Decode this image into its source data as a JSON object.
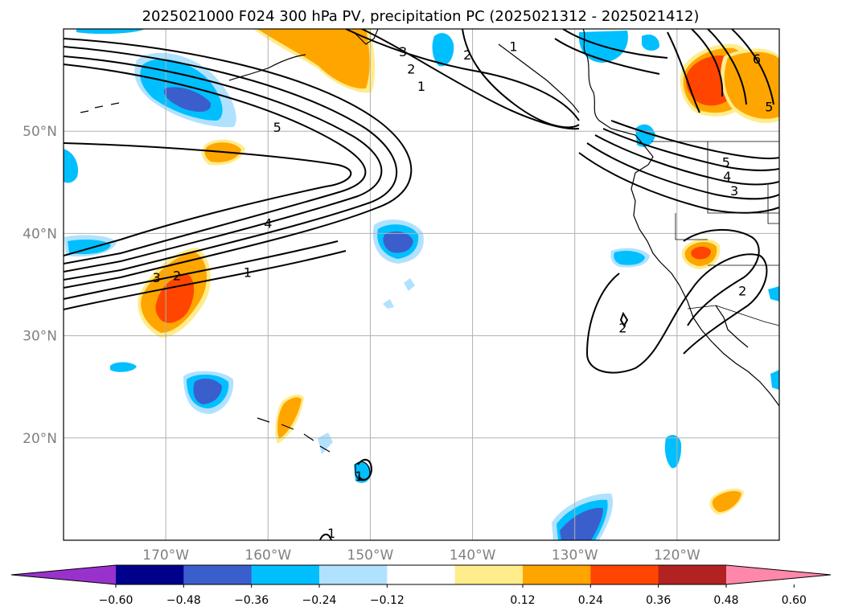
{
  "figure": {
    "title": "2025021000 F024 300 hPa PV, precipitation PC (2025021312 - 2025021412)"
  },
  "map": {
    "extent": {
      "lon_min": -180,
      "lon_max": -110,
      "lat_min": 10,
      "lat_max": 60
    },
    "gridlines": true,
    "lat_labels": [
      {
        "lat": 50,
        "text": "50°N"
      },
      {
        "lat": 40,
        "text": "40°N"
      },
      {
        "lat": 30,
        "text": "30°N"
      },
      {
        "lat": 20,
        "text": "20°N"
      }
    ],
    "lon_labels": [
      {
        "lon": -170,
        "text": "170°W"
      },
      {
        "lon": -160,
        "text": "160°W"
      },
      {
        "lon": -150,
        "text": "150°W"
      },
      {
        "lon": -140,
        "text": "140°W"
      },
      {
        "lon": -130,
        "text": "130°W"
      },
      {
        "lon": -120,
        "text": "120°W"
      }
    ],
    "contour_labels": [
      {
        "text": "3",
        "lon": -170.9,
        "lat": 35.7
      },
      {
        "text": "2",
        "lon": -168.9,
        "lat": 35.9
      },
      {
        "text": "1",
        "lon": -162.0,
        "lat": 36.2
      },
      {
        "text": "4",
        "lon": -160.0,
        "lat": 41.0
      },
      {
        "text": "5",
        "lon": -159.1,
        "lat": 50.4
      },
      {
        "text": "3",
        "lon": -146.8,
        "lat": 57.8
      },
      {
        "text": "2",
        "lon": -146.0,
        "lat": 56.1
      },
      {
        "text": "1",
        "lon": -145.0,
        "lat": 54.4
      },
      {
        "text": "2",
        "lon": -140.5,
        "lat": 57.5
      },
      {
        "text": "1",
        "lon": -136.0,
        "lat": 58.3
      },
      {
        "text": "5",
        "lon": -115.2,
        "lat": 47.0
      },
      {
        "text": "4",
        "lon": -115.1,
        "lat": 45.6
      },
      {
        "text": "3",
        "lon": -114.4,
        "lat": 44.2
      },
      {
        "text": "2",
        "lon": -113.6,
        "lat": 34.4
      },
      {
        "text": "2",
        "lon": -125.3,
        "lat": 30.8
      },
      {
        "text": "6",
        "lon": -112.2,
        "lat": 57.1
      },
      {
        "text": "5",
        "lon": -111.0,
        "lat": 52.4
      },
      {
        "text": "1",
        "lon": -151.1,
        "lat": 16.3
      },
      {
        "text": "1",
        "lon": -153.8,
        "lat": 10.7
      }
    ]
  },
  "legend": {
    "colormap": [
      {
        "lo": null,
        "hi": -0.6,
        "color": "#9932cc"
      },
      {
        "lo": -0.6,
        "hi": -0.48,
        "color": "#00008b"
      },
      {
        "lo": -0.48,
        "hi": -0.36,
        "color": "#3a5fcd"
      },
      {
        "lo": -0.36,
        "hi": -0.24,
        "color": "#00bfff"
      },
      {
        "lo": -0.24,
        "hi": -0.12,
        "color": "#b0e2ff"
      },
      {
        "lo": -0.12,
        "hi": 0.12,
        "color": "#ffffff"
      },
      {
        "lo": 0.12,
        "hi": 0.24,
        "color": "#ffec8b"
      },
      {
        "lo": 0.24,
        "hi": 0.36,
        "color": "#ffa500"
      },
      {
        "lo": 0.36,
        "hi": 0.48,
        "color": "#ff4500"
      },
      {
        "lo": 0.48,
        "hi": 0.6,
        "color": "#b22222"
      },
      {
        "lo": 0.6,
        "hi": null,
        "color": "#ff88aa"
      }
    ],
    "tick_labels": [
      "−0.60",
      "−0.48",
      "−0.36",
      "−0.24",
      "−0.12",
      "0.12",
      "0.24",
      "0.36",
      "0.48",
      "0.60"
    ]
  }
}
